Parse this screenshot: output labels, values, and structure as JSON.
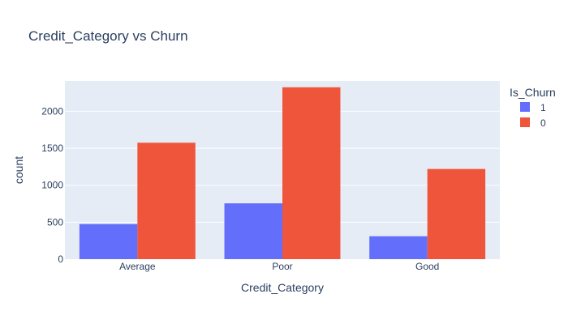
{
  "chart_data": {
    "type": "bar",
    "barmode": "group",
    "title": "Credit_Category vs Churn",
    "xlabel": "Credit_Category",
    "ylabel": "count",
    "categories": [
      "Average",
      "Poor",
      "Good"
    ],
    "ylim": [
      0,
      2410
    ],
    "yticks": [
      0,
      500,
      1000,
      1500,
      2000
    ],
    "grid": true,
    "legend": {
      "title": "Is_Churn",
      "position": "top-right"
    },
    "series": [
      {
        "name": "1",
        "color": "#636efa",
        "values": [
          475,
          755,
          310
        ]
      },
      {
        "name": "0",
        "color": "#ef553b",
        "values": [
          1575,
          2325,
          1220
        ]
      }
    ]
  }
}
